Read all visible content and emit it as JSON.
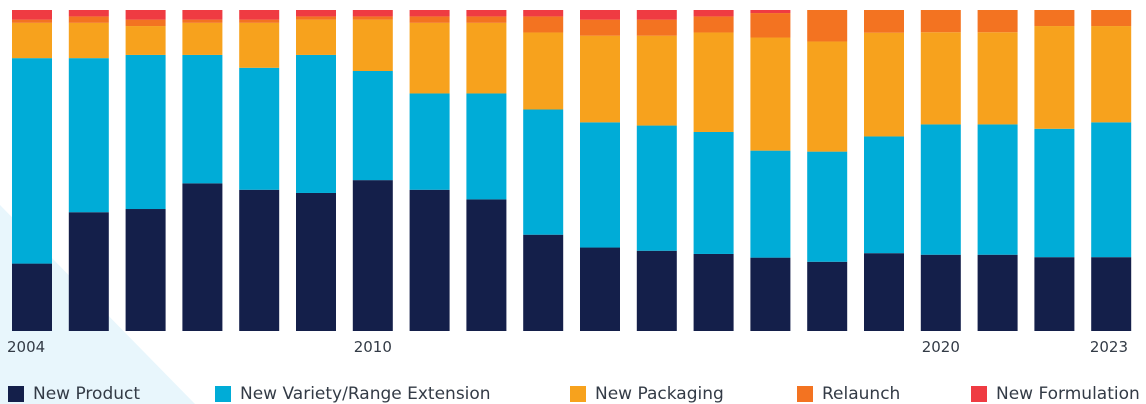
{
  "chart_data": {
    "type": "bar",
    "stacked": true,
    "normalized": true,
    "categories": [
      "2004",
      "2005",
      "2006",
      "2007",
      "2008",
      "2009",
      "2010",
      "2011",
      "2012",
      "2013",
      "2014",
      "2015",
      "2016",
      "2017",
      "2018",
      "2019",
      "2020",
      "2021",
      "2022",
      "2023"
    ],
    "x_tick_labels": [
      {
        "category": "2004",
        "label": "2004"
      },
      {
        "category": "2010",
        "label": "2010"
      },
      {
        "category": "2020",
        "label": "2020"
      },
      {
        "category": "2023",
        "label": "2023"
      }
    ],
    "ylim": [
      0,
      100
    ],
    "grid": false,
    "legend_position": "bottom",
    "series": [
      {
        "name": "New Product",
        "color": "#141f4a",
        "values": [
          21,
          37,
          38,
          46,
          44,
          43,
          47,
          44,
          41,
          30,
          26,
          25,
          24,
          24,
          22,
          24,
          24,
          24,
          23,
          23
        ]
      },
      {
        "name": "New Variety/Range Extension",
        "color": "#00acd7",
        "values": [
          64,
          48,
          48,
          40,
          38,
          43,
          34,
          30,
          33,
          39,
          39,
          39,
          38,
          35,
          35,
          36,
          41,
          41,
          40,
          42
        ]
      },
      {
        "name": "New Packaging",
        "color": "#f7a21d",
        "values": [
          11,
          11,
          9,
          10,
          14,
          11,
          16,
          22,
          22,
          24,
          27,
          28,
          31,
          37,
          35,
          32,
          29,
          29,
          32,
          30
        ]
      },
      {
        "name": "Relaunch",
        "color": "#f37321",
        "values": [
          1,
          2,
          2,
          1,
          1,
          1,
          1,
          2,
          2,
          5,
          5,
          5,
          5,
          8,
          10,
          7,
          7,
          7,
          5,
          5
        ]
      },
      {
        "name": "New Formulation",
        "color": "#ef3b42",
        "values": [
          3,
          2,
          3,
          3,
          3,
          2,
          2,
          2,
          2,
          2,
          3,
          3,
          2,
          1,
          0,
          0,
          0,
          0,
          0,
          0
        ]
      }
    ]
  }
}
